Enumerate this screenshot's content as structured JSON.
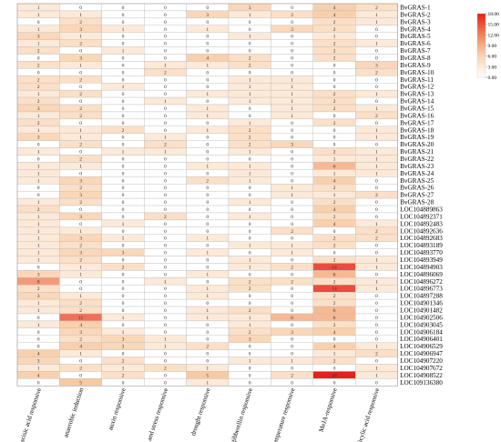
{
  "chart_data": {
    "type": "heatmap",
    "title": "",
    "xlabel": "",
    "ylabel": "",
    "columns": [
      "abscisic acid responsive",
      "anaerobic induction",
      "auxin responsive",
      "defense and stress responsive",
      "drought responsive",
      "gibberellin responsive",
      "low-temperature responsive",
      "MeJA-responsive",
      "salicylic acid responsive"
    ],
    "rows": [
      "BvGRAS-1",
      "BvGRAS-2",
      "BvGRAS-3",
      "BvGRAS-4",
      "BvGRAS-5",
      "BvGRAS-6",
      "BvGRAS-7",
      "BvGRAS-8",
      "BvGRAS-9",
      "BvGRAS-10",
      "BvGRAS-11",
      "BvGRAS-12",
      "BvGRAS-13",
      "BvGRAS-14",
      "BvGRAS-15",
      "BvGRAS-16",
      "BvGRAS-17",
      "BvGRAS-18",
      "BvGRAS-19",
      "BvGRAS-20",
      "BvGRAS-21",
      "BvGRAS-22",
      "BvGRAS-23",
      "BvGRAS-24",
      "BvGRAS-25",
      "BvGRAS-26",
      "BvGRAS-27",
      "BvGRAS-28",
      "LOC104889863",
      "LOC104892371",
      "LOC104892483",
      "LOC104892636",
      "LOC104892683",
      "LOC104893189",
      "LOC104893770",
      "LOC104893949",
      "LOC104894903",
      "LOC104896069",
      "LOC104896272",
      "LOC104896773",
      "LOC104897288",
      "LOC104901346",
      "LOC104901482",
      "LOC104902506",
      "LOC104903045",
      "LOC104906184",
      "LOC104906401",
      "LOC104906529",
      "LOC104906947",
      "LOC104907220",
      "LOC104907672",
      "LOC104908522",
      "LOC109136380"
    ],
    "values": [
      [
        1,
        0,
        0,
        0,
        0,
        3,
        0,
        4,
        2
      ],
      [
        1,
        1,
        0,
        0,
        3,
        1,
        2,
        4,
        1
      ],
      [
        0,
        2,
        0,
        0,
        0,
        0,
        0,
        2,
        1
      ],
      [
        1,
        3,
        1,
        0,
        1,
        0,
        3,
        2,
        0
      ],
      [
        3,
        1,
        0,
        0,
        0,
        1,
        0,
        1,
        0
      ],
      [
        1,
        2,
        0,
        0,
        0,
        0,
        0,
        2,
        1
      ],
      [
        2,
        0,
        1,
        0,
        0,
        0,
        0,
        2,
        0
      ],
      [
        0,
        3,
        0,
        0,
        4,
        2,
        0,
        2,
        0
      ],
      [
        2,
        1,
        0,
        1,
        1,
        2,
        0,
        0,
        3
      ],
      [
        0,
        0,
        0,
        2,
        0,
        0,
        0,
        0,
        2
      ],
      [
        2,
        2,
        0,
        0,
        0,
        1,
        1,
        0,
        0
      ],
      [
        2,
        0,
        1,
        0,
        0,
        1,
        1,
        0,
        0
      ],
      [
        1,
        2,
        0,
        0,
        1,
        1,
        1,
        2,
        1
      ],
      [
        2,
        0,
        0,
        1,
        0,
        1,
        1,
        2,
        0
      ],
      [
        3,
        2,
        0,
        0,
        1,
        0,
        1,
        2,
        1
      ],
      [
        1,
        2,
        0,
        0,
        1,
        0,
        1,
        0,
        2
      ],
      [
        2,
        0,
        0,
        0,
        0,
        1,
        0,
        2,
        0
      ],
      [
        1,
        1,
        2,
        0,
        1,
        2,
        0,
        0,
        1
      ],
      [
        3,
        1,
        0,
        1,
        0,
        2,
        0,
        0,
        1
      ],
      [
        0,
        2,
        0,
        2,
        0,
        2,
        3,
        0,
        0
      ],
      [
        1,
        0,
        1,
        1,
        0,
        1,
        0,
        2,
        1
      ],
      [
        0,
        2,
        0,
        0,
        0,
        0,
        0,
        1,
        1
      ],
      [
        1,
        1,
        0,
        0,
        1,
        1,
        0,
        6,
        1
      ],
      [
        1,
        0,
        0,
        0,
        0,
        1,
        0,
        1,
        1
      ],
      [
        1,
        3,
        0,
        0,
        2,
        1,
        0,
        4,
        0
      ],
      [
        0,
        2,
        0,
        0,
        0,
        0,
        1,
        2,
        0
      ],
      [
        0,
        3,
        0,
        0,
        0,
        0,
        1,
        1,
        2
      ],
      [
        1,
        2,
        0,
        0,
        0,
        1,
        0,
        2,
        0
      ],
      [
        2,
        0,
        0,
        0,
        0,
        0,
        0,
        4,
        0
      ],
      [
        1,
        3,
        0,
        2,
        0,
        1,
        0,
        2,
        0
      ],
      [
        1,
        0,
        1,
        0,
        0,
        0,
        0,
        4,
        1
      ],
      [
        1,
        1,
        0,
        0,
        0,
        0,
        2,
        0,
        2
      ],
      [
        1,
        3,
        1,
        0,
        1,
        0,
        0,
        2,
        2
      ],
      [
        1,
        2,
        0,
        0,
        0,
        1,
        1,
        2,
        0
      ],
      [
        1,
        3,
        3,
        0,
        1,
        0,
        1,
        0,
        0
      ],
      [
        1,
        2,
        0,
        0,
        0,
        1,
        0,
        2,
        1
      ],
      [
        0,
        1,
        2,
        0,
        0,
        1,
        2,
        14,
        1
      ],
      [
        3,
        1,
        0,
        0,
        1,
        0,
        0,
        6,
        0
      ],
      [
        8,
        0,
        0,
        1,
        0,
        2,
        2,
        2,
        1
      ],
      [
        2,
        0,
        0,
        0,
        1,
        2,
        0,
        14,
        1
      ],
      [
        3,
        1,
        0,
        0,
        1,
        0,
        0,
        2,
        0
      ],
      [
        1,
        2,
        0,
        0,
        0,
        0,
        0,
        2,
        0
      ],
      [
        1,
        2,
        0,
        0,
        1,
        2,
        0,
        6,
        0
      ],
      [
        0,
        11,
        1,
        0,
        1,
        1,
        6,
        6,
        0
      ],
      [
        1,
        4,
        0,
        0,
        0,
        1,
        0,
        2,
        0
      ],
      [
        0,
        3,
        1,
        0,
        0,
        2,
        3,
        4,
        0
      ],
      [
        0,
        2,
        3,
        1,
        0,
        3,
        0,
        0,
        0
      ],
      [
        0,
        4,
        3,
        1,
        2,
        0,
        0,
        4,
        1
      ],
      [
        4,
        1,
        0,
        0,
        0,
        0,
        0,
        1,
        2
      ],
      [
        3,
        0,
        2,
        0,
        0,
        1,
        1,
        2,
        0
      ],
      [
        1,
        2,
        1,
        2,
        1,
        0,
        0,
        0,
        1
      ],
      [
        4,
        0,
        2,
        0,
        5,
        0,
        2,
        18,
        1
      ],
      [
        0,
        5,
        0,
        0,
        1,
        0,
        0,
        0,
        0
      ]
    ],
    "scale": {
      "min": 0,
      "max": 18,
      "low_color": "#ffffff",
      "mid_color": "#f8c9a0",
      "high_color": "#e6201a"
    },
    "legend": {
      "placement": "top-right",
      "ticks": [
        18,
        15,
        12,
        9,
        6,
        3,
        0
      ],
      "tick_labels": [
        "18.00",
        "15.00",
        "12.00",
        "9.00",
        "6.00",
        "3.00",
        "0.00"
      ]
    },
    "grid": true
  }
}
